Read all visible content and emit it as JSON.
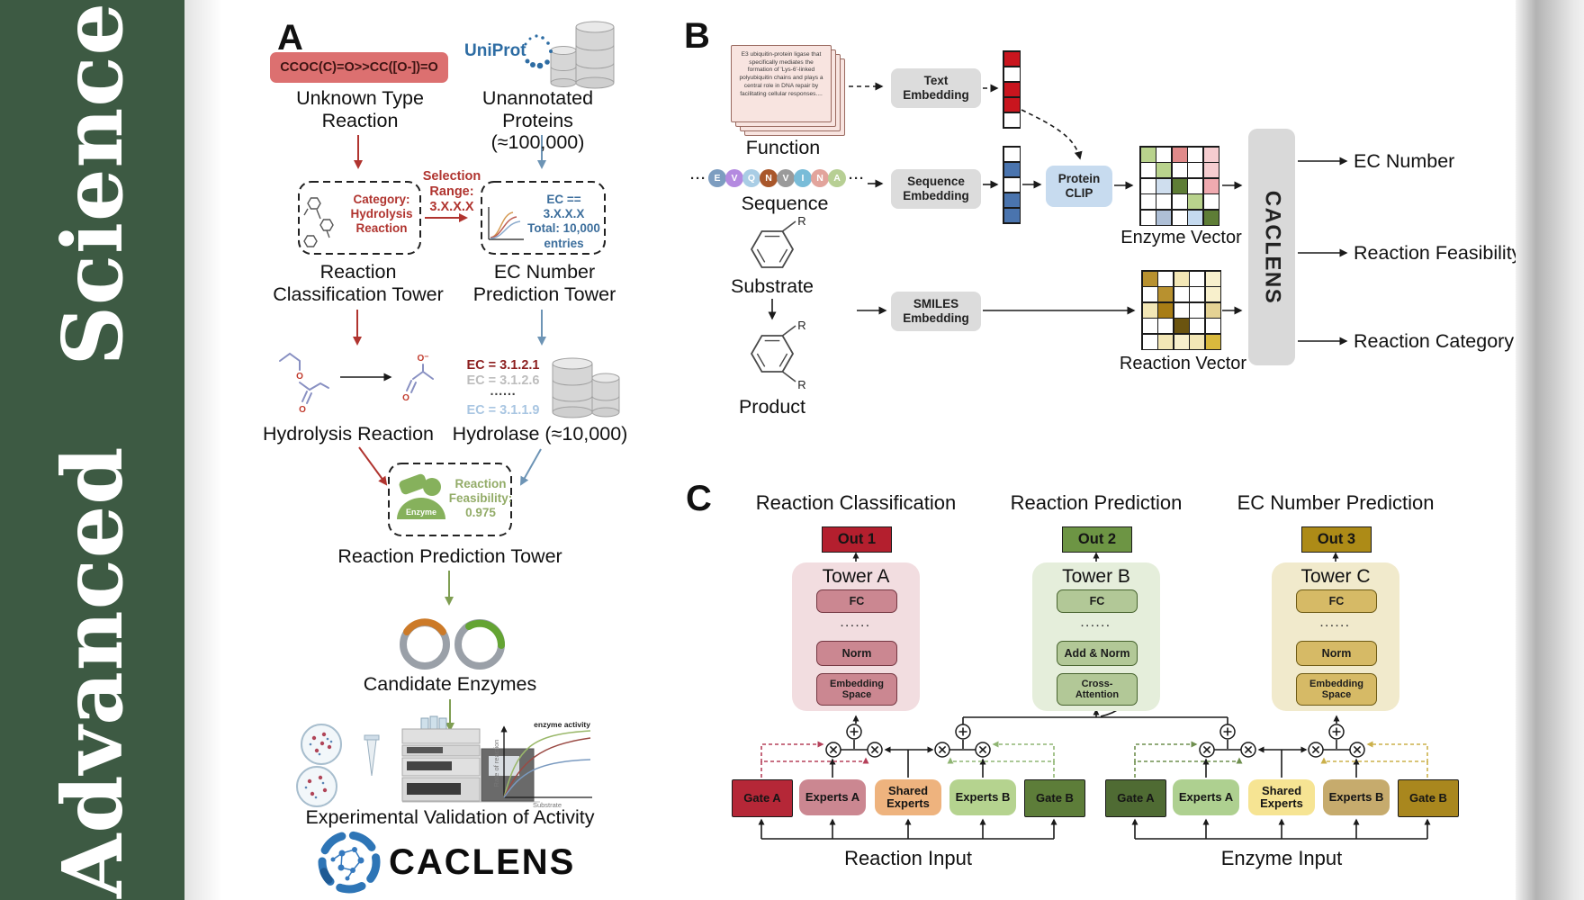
{
  "journal": {
    "name": "Advanced Science",
    "sidebar_color": "#3d5a43"
  },
  "panel_a": {
    "label": "A",
    "smiles": "CCOC(C)=O>>CC([O-])=O",
    "unknown_reaction": "Unknown Type\nReaction",
    "uniprot": "UniProt",
    "unannotated": "Unannotated\nProteins (≈100,000)",
    "selection_range": "Selection\nRange:\n3.X.X.X",
    "category": "Category:\nHydrolysis\nReaction",
    "ec_filter": "EC == 3.X.X.X\nTotal: 10,000\nentries",
    "classification_tower": "Reaction\nClassification Tower",
    "ec_tower": "EC Number\nPrediction Tower",
    "ec_list": [
      {
        "text": "EC = 3.1.2.1",
        "color": "#8d2020"
      },
      {
        "text": "EC = 3.1.2.6",
        "color": "#bdbdbd"
      },
      {
        "text": "······",
        "color": "#444444"
      },
      {
        "text": "EC = 3.1.1.9",
        "color": "#a9c6e2"
      }
    ],
    "hydrolysis": "Hydrolysis Reaction",
    "hydrolase": "Hydrolase (≈10,000)",
    "o_label": "O",
    "o_minus_label": "O⁻",
    "enzyme_icon_label": "Enzyme",
    "feasibility": "Reaction\nFeasibility:\n0.975",
    "prediction_tower": "Reaction Prediction Tower",
    "candidates": "Candidate Enzymes",
    "validation": "Experimental Validation of Activity",
    "plot": {
      "annotation": "enzyme activity",
      "ylabel": "Rate of reaction",
      "xlabel": "Substrate"
    },
    "logo_text": "CACLENS"
  },
  "panel_b": {
    "label": "B",
    "function_card": "E3 ubiquitin-protein ligase that specifically mediates the formation of 'Lys-6'-linked polyubiquitin chains and plays a central role in DNA repair by facilitating cellular responses....",
    "function_label": "Function",
    "ellipsis": "···",
    "sequence_residues": [
      {
        "letter": "E",
        "color": "#7d9dc0"
      },
      {
        "letter": "V",
        "color": "#b48ae0"
      },
      {
        "letter": "Q",
        "color": "#a9cde5"
      },
      {
        "letter": "N",
        "color": "#a9572b"
      },
      {
        "letter": "V",
        "color": "#9a9a9a"
      },
      {
        "letter": "I",
        "color": "#79bcd8"
      },
      {
        "letter": "N",
        "color": "#e2a49c"
      },
      {
        "letter": "A",
        "color": "#b7cf94"
      }
    ],
    "sequence_label": "Sequence",
    "substrate_label": "Substrate",
    "product_label": "Product",
    "r_label": "R",
    "text_embedding": "Text\nEmbedding",
    "sequence_embedding": "Sequence\nEmbedding",
    "smiles_embedding": "SMILES\nEmbedding",
    "protein_clip": "Protein\nCLIP",
    "text_vector": [
      "#c9151e",
      "#ffffff",
      "#c9151e",
      "#c9151e",
      "#ffffff"
    ],
    "sequence_vector": [
      "#ffffff",
      "#4a74ae",
      "#ffffff",
      "#4a74ae",
      "#4a74ae"
    ],
    "enzyme_vector_label": "Enzyme Vector",
    "reaction_vector_label": "Reaction Vector",
    "enzyme_grid": [
      [
        "#b9d38d",
        "#ffffff",
        "#e08a8a",
        "#ffffff",
        "#f6cdd0"
      ],
      [
        "#ffffff",
        "#b9d38d",
        "#ffffff",
        "#ffffff",
        "#f6cdd0"
      ],
      [
        "#ffffff",
        "#cfdeee",
        "#5e7d36",
        "#ffffff",
        "#f0aab0"
      ],
      [
        "#ffffff",
        "#ffffff",
        "#ffffff",
        "#b9d38d",
        "#ffffff"
      ],
      [
        "#ffffff",
        "#aebfd6",
        "#ffffff",
        "#c5daef",
        "#5e7d36"
      ]
    ],
    "reaction_grid": [
      [
        "#b8912f",
        "#ffffff",
        "#f3e7b6",
        "#ffffff",
        "#f8f0cc"
      ],
      [
        "#ffffff",
        "#b8912f",
        "#ffffff",
        "#ffffff",
        "#f8f0cc"
      ],
      [
        "#f3e7b6",
        "#a87d15",
        "#ffffff",
        "#ffffff",
        "#e4d294"
      ],
      [
        "#ffffff",
        "#ffffff",
        "#6b5410",
        "#ffffff",
        "#ffffff"
      ],
      [
        "#ffffff",
        "#f3e7b6",
        "#f8f0cc",
        "#f3e7b6",
        "#d9b93d"
      ]
    ],
    "caclens": "CACLENS",
    "outputs": [
      "EC Number",
      "Reaction Feasibility",
      "Reaction Category"
    ]
  },
  "panel_c": {
    "label": "C",
    "towers": [
      {
        "header": "Reaction Classification",
        "out": "Out 1",
        "out_color": "#b41f2e",
        "name": "Tower A",
        "panel_color": "#f2dde0",
        "box_color": "#cb8791",
        "box_border": "#743742",
        "fc": "FC",
        "dots": "······",
        "mid": "Norm",
        "bottom": "Embedding\nSpace"
      },
      {
        "header": "Reaction Prediction",
        "out": "Out 2",
        "out_color": "#6d9544",
        "name": "Tower B",
        "panel_color": "#e5eedb",
        "box_color": "#b2c897",
        "box_border": "#47632e",
        "fc": "FC",
        "dots": "······",
        "mid": "Add & Norm",
        "bottom": "Cross-\nAttention"
      },
      {
        "header": "EC Number Prediction",
        "out": "Out 3",
        "out_color": "#ad8b17",
        "name": "Tower C",
        "panel_color": "#f1eacc",
        "box_color": "#d6ba66",
        "box_border": "#6d5a14",
        "fc": "FC",
        "dots": "······",
        "mid": "Norm",
        "bottom": "Embedding\nSpace"
      }
    ],
    "moe_groups": [
      {
        "input_label": "Reaction Input",
        "boxes": [
          {
            "label": "Gate A",
            "color": "#b52737",
            "shape": "rect"
          },
          {
            "label": "Experts A",
            "color": "#cb8791",
            "shape": "round"
          },
          {
            "label": "Shared\nExperts",
            "color": "#eeb37e",
            "shape": "round"
          },
          {
            "label": "Experts B",
            "color": "#b5d38f",
            "shape": "round"
          },
          {
            "label": "Gate B",
            "color": "#5d7d39",
            "shape": "rect"
          }
        ]
      },
      {
        "input_label": "Enzyme Input",
        "boxes": [
          {
            "label": "Gate A",
            "color": "#4f6b33",
            "shape": "rect"
          },
          {
            "label": "Experts A",
            "color": "#aed090",
            "shape": "round"
          },
          {
            "label": "Shared\nExperts",
            "color": "#f6e493",
            "shape": "round"
          },
          {
            "label": "Experts B",
            "color": "#c6ab6d",
            "shape": "round"
          },
          {
            "label": "Gate B",
            "color": "#a9871e",
            "shape": "rect"
          }
        ]
      }
    ]
  }
}
